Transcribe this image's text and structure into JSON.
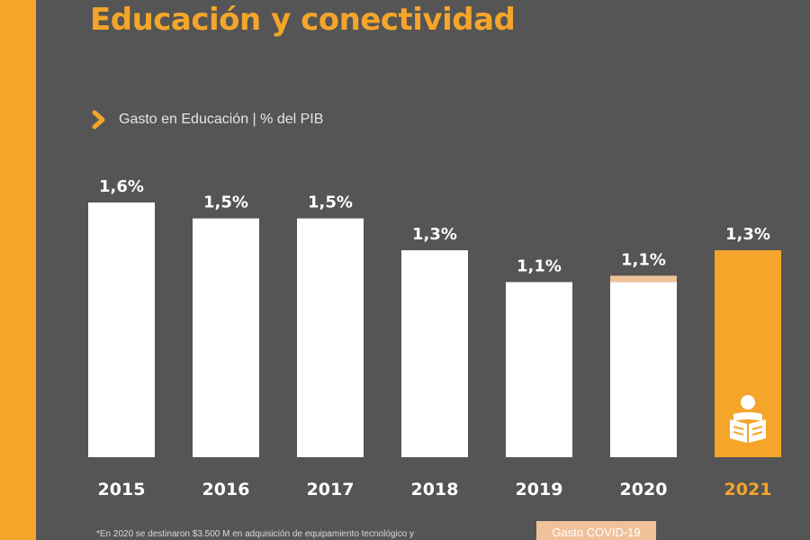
{
  "title": "Educación y conectividad",
  "subtitle": "Gasto en Educación | % del PIB",
  "footnote": "*En 2020 se destinaron $3.500 M en adquisición de equipamiento tecnológico y",
  "legend": {
    "covid_label": "Gasto COVID-19"
  },
  "icons": {
    "chevron": "chevron-right-icon",
    "reader": "book-reader-icon"
  },
  "colors": {
    "background": "#555555",
    "accent": "#f4a52a",
    "bar": "#ffffff",
    "covid": "#f0c29a",
    "text": "#ffffff"
  },
  "chart_data": {
    "type": "bar",
    "title": "Educación y conectividad",
    "subtitle": "Gasto en Educación | % del PIB",
    "categories": [
      "2015",
      "2016",
      "2017",
      "2018",
      "2019",
      "2020",
      "2021"
    ],
    "values": [
      1.6,
      1.5,
      1.5,
      1.3,
      1.1,
      1.1,
      1.3
    ],
    "value_labels": [
      "1,6%",
      "1,5%",
      "1,5%",
      "1,3%",
      "1,1%",
      "1,1%",
      "1,3%"
    ],
    "covid_component": [
      0,
      0,
      0,
      0,
      0,
      0.04,
      0
    ],
    "highlight_category": "2021",
    "ylim": [
      0,
      1.6
    ],
    "grid": false,
    "legend_placement": "bottom-right"
  }
}
